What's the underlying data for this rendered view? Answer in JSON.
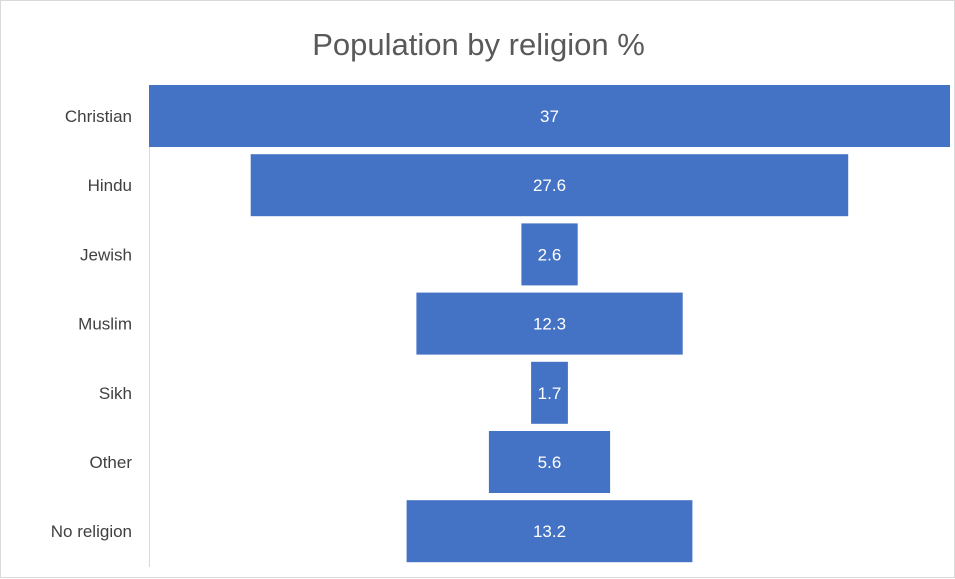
{
  "chart_data": {
    "type": "bar",
    "subtype": "funnel",
    "title": "Population by religion %",
    "categories": [
      "Christian",
      "Hindu",
      "Jewish",
      "Muslim",
      "Sikh",
      "Other",
      "No religion"
    ],
    "values": [
      37,
      27.6,
      2.6,
      12.3,
      1.7,
      5.6,
      13.2
    ],
    "data_labels": [
      "37",
      "27.6",
      "2.6",
      "12.3",
      "1.7",
      "5.6",
      "13.2"
    ],
    "xlabel": "",
    "ylabel": "",
    "xlim": [
      0,
      37
    ],
    "grid": false,
    "legend": "none",
    "bar_color": "#4472C4",
    "label_color": "#ffffff",
    "axis_text_color": "#404040",
    "axis_line_color": "#d9d9d9"
  }
}
